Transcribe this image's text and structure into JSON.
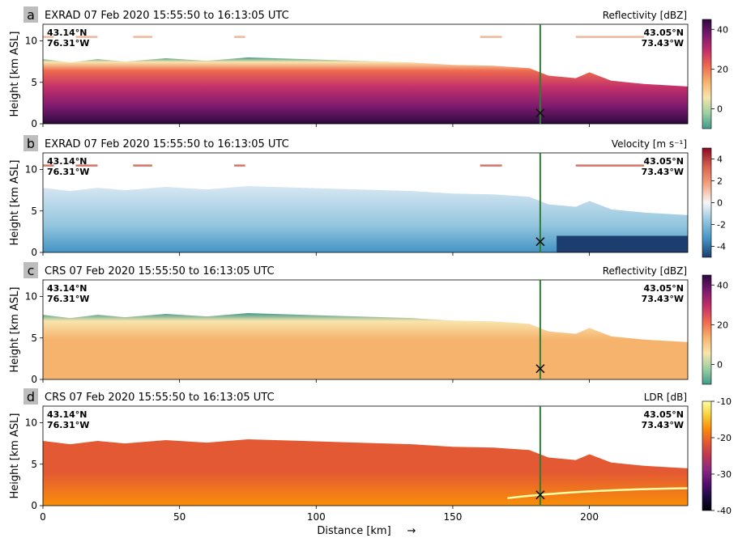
{
  "chart_data": {
    "type": "heatmap",
    "xlabel": "Distance [km]",
    "x_arrow": "→",
    "ylabel": "Height [km ASL]",
    "xlim": [
      0,
      236
    ],
    "ylim": [
      0,
      12
    ],
    "x_ticks": [
      0,
      50,
      100,
      150,
      200
    ],
    "y_ticks": [
      0,
      5,
      10
    ],
    "marker": {
      "x": 182,
      "y": 1.3,
      "vertical_line_x": 182,
      "line_color": "#2e7d32"
    },
    "corner_left": {
      "lat": "43.14°N",
      "lon": "76.31°W"
    },
    "corner_right": {
      "lat": "43.05°N",
      "lon": "73.43°W"
    },
    "panels": [
      {
        "letter": "a",
        "title": "EXRAD 07 Feb 2020 15:55:50 to 16:13:05 UTC",
        "variable": "Reflectivity [dBZ]",
        "colormap": "plasma-like (teal–orange–magenta–purple)",
        "colorbar_ticks": [
          40,
          20,
          0
        ],
        "colorbar_range": [
          -10,
          45
        ],
        "colorbar_colors": [
          "#2d0a3e",
          "#7a1a6e",
          "#c2306a",
          "#ee6a4f",
          "#f6b36e",
          "#f8e5ac",
          "#9ed0a4",
          "#3f9a8a"
        ]
      },
      {
        "letter": "b",
        "title": "EXRAD 07 Feb 2020 15:55:50 to 16:13:05 UTC",
        "variable": "Velocity [m s⁻¹]",
        "colormap": "diverging red–white–blue",
        "colorbar_ticks": [
          4,
          2,
          0,
          -2,
          -4
        ],
        "colorbar_range": [
          -5,
          5
        ],
        "colorbar_colors": [
          "#8b0a24",
          "#d6604d",
          "#f4a582",
          "#f7f7f7",
          "#92c5de",
          "#4393c3",
          "#1d3d6e"
        ]
      },
      {
        "letter": "c",
        "title": "CRS 07 Feb 2020 15:55:50 to 16:13:05 UTC",
        "variable": "Reflectivity [dBZ]",
        "colormap": "plasma-like (teal–orange–magenta–purple)",
        "colorbar_ticks": [
          40,
          20,
          0
        ],
        "colorbar_range": [
          -10,
          45
        ],
        "colorbar_colors": [
          "#2d0a3e",
          "#7a1a6e",
          "#c2306a",
          "#ee6a4f",
          "#f6b36e",
          "#f8e5ac",
          "#9ed0a4",
          "#3f9a8a"
        ]
      },
      {
        "letter": "d",
        "title": "CRS 07 Feb 2020 15:55:50 to 16:13:05 UTC",
        "variable": "LDR [dB]",
        "colormap": "inferno-like",
        "colorbar_ticks": [
          -10,
          -20,
          -30,
          -40
        ],
        "colorbar_range": [
          -40,
          -10
        ],
        "colorbar_colors": [
          "#fcffa4",
          "#f7d03c",
          "#f98e09",
          "#e35933",
          "#bc3754",
          "#8c2981",
          "#56106e",
          "#1b0c41",
          "#000004"
        ]
      }
    ]
  }
}
